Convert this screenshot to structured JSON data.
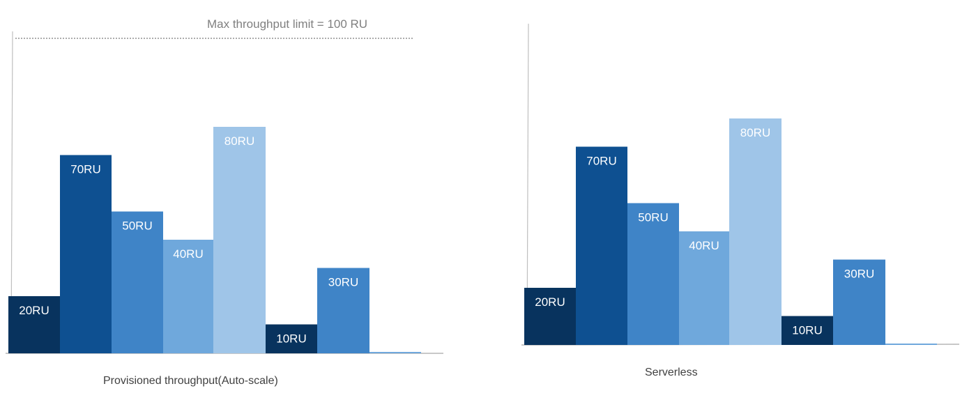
{
  "chart_data": [
    {
      "type": "bar",
      "caption": "Provisioned throughput(Auto-scale)",
      "limit_label": "Max throughput limit = 100 RU",
      "limit_value": 100,
      "ylim": [
        0,
        112
      ],
      "grid": false,
      "legend": "none",
      "bars": [
        {
          "value": 20,
          "label": "20RU",
          "color": "#08335e"
        },
        {
          "value": 70,
          "label": "70RU",
          "color": "#0e5091"
        },
        {
          "value": 50,
          "label": "50RU",
          "color": "#3f84c7"
        },
        {
          "value": 40,
          "label": "40RU",
          "color": "#6fa8dc"
        },
        {
          "value": 80,
          "label": "80RU",
          "color": "#9fc5e8"
        },
        {
          "value": 10,
          "label": "10RU",
          "color": "#08335e"
        },
        {
          "value": 30,
          "label": "30RU",
          "color": "#3f84c7"
        },
        {
          "value": 0,
          "label": "",
          "color": "#6fa8dc"
        }
      ]
    },
    {
      "type": "bar",
      "caption": "Serverless",
      "ylim": [
        0,
        112
      ],
      "grid": false,
      "legend": "none",
      "bars": [
        {
          "value": 20,
          "label": "20RU",
          "color": "#08335e"
        },
        {
          "value": 70,
          "label": "70RU",
          "color": "#0e5091"
        },
        {
          "value": 50,
          "label": "50RU",
          "color": "#3f84c7"
        },
        {
          "value": 40,
          "label": "40RU",
          "color": "#6fa8dc"
        },
        {
          "value": 80,
          "label": "80RU",
          "color": "#9fc5e8"
        },
        {
          "value": 10,
          "label": "10RU",
          "color": "#08335e"
        },
        {
          "value": 30,
          "label": "30RU",
          "color": "#3f84c7"
        },
        {
          "value": 0,
          "label": "",
          "color": "#6fa8dc"
        }
      ]
    }
  ]
}
